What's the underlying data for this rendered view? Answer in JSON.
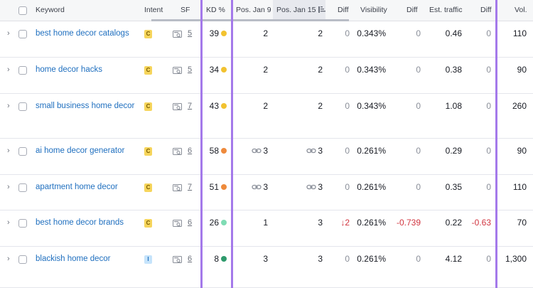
{
  "header": {
    "keyword": "Keyword",
    "intent": "Intent",
    "sf": "SF",
    "kd": "KD %",
    "pos_jan9": "Pos. Jan 9",
    "pos_jan15": "Pos. Jan 15",
    "diff1": "Diff",
    "visibility": "Visibility",
    "diff2": "Diff",
    "est_traffic": "Est. traffic",
    "diff3": "Diff",
    "vol": "Vol."
  },
  "rows": [
    {
      "keyword": "best home decor catalogs",
      "intent": "C",
      "sf": "5",
      "kd": "39",
      "kd_color": "#f2c230",
      "pos_jan9": "2",
      "pos_jan9_link": false,
      "pos_jan15": "2",
      "pos_jan15_link": false,
      "diff": "0",
      "diff_neg": false,
      "visibility": "0.343%",
      "vis_diff": "0",
      "vis_diff_neg": false,
      "traffic": "0.46",
      "traffic_diff": "0",
      "traffic_diff_neg": false,
      "vol": "110"
    },
    {
      "keyword": "home decor hacks",
      "intent": "C",
      "sf": "5",
      "kd": "34",
      "kd_color": "#f2c230",
      "pos_jan9": "2",
      "pos_jan9_link": false,
      "pos_jan15": "2",
      "pos_jan15_link": false,
      "diff": "0",
      "diff_neg": false,
      "visibility": "0.343%",
      "vis_diff": "0",
      "vis_diff_neg": false,
      "traffic": "0.38",
      "traffic_diff": "0",
      "traffic_diff_neg": false,
      "vol": "90"
    },
    {
      "keyword": "small business home decor",
      "intent": "C",
      "sf": "7",
      "kd": "43",
      "kd_color": "#f2c230",
      "pos_jan9": "2",
      "pos_jan9_link": false,
      "pos_jan15": "2",
      "pos_jan15_link": false,
      "diff": "0",
      "diff_neg": false,
      "visibility": "0.343%",
      "vis_diff": "0",
      "vis_diff_neg": false,
      "traffic": "1.08",
      "traffic_diff": "0",
      "traffic_diff_neg": false,
      "vol": "260"
    },
    {
      "keyword": "ai home decor generator",
      "intent": "C",
      "sf": "6",
      "kd": "58",
      "kd_color": "#ee8a3c",
      "pos_jan9": "3",
      "pos_jan9_link": true,
      "pos_jan15": "3",
      "pos_jan15_link": true,
      "diff": "0",
      "diff_neg": false,
      "visibility": "0.261%",
      "vis_diff": "0",
      "vis_diff_neg": false,
      "traffic": "0.29",
      "traffic_diff": "0",
      "traffic_diff_neg": false,
      "vol": "90"
    },
    {
      "keyword": "apartment home decor",
      "intent": "C",
      "sf": "7",
      "kd": "51",
      "kd_color": "#ee8a3c",
      "pos_jan9": "3",
      "pos_jan9_link": true,
      "pos_jan15": "3",
      "pos_jan15_link": true,
      "diff": "0",
      "diff_neg": false,
      "visibility": "0.261%",
      "vis_diff": "0",
      "vis_diff_neg": false,
      "traffic": "0.35",
      "traffic_diff": "0",
      "traffic_diff_neg": false,
      "vol": "110"
    },
    {
      "keyword": "best home decor brands",
      "intent": "C",
      "sf": "6",
      "kd": "26",
      "kd_color": "#7fdcb4",
      "pos_jan9": "1",
      "pos_jan9_link": false,
      "pos_jan15": "3",
      "pos_jan15_link": false,
      "diff": "2",
      "diff_neg": true,
      "visibility": "0.261%",
      "vis_diff": "-0.739",
      "vis_diff_neg": true,
      "traffic": "0.22",
      "traffic_diff": "-0.63",
      "traffic_diff_neg": true,
      "vol": "70"
    },
    {
      "keyword": "blackish home decor",
      "intent": "I",
      "sf": "6",
      "kd": "8",
      "kd_color": "#2e9a6c",
      "pos_jan9": "3",
      "pos_jan9_link": false,
      "pos_jan15": "3",
      "pos_jan15_link": false,
      "diff": "0",
      "diff_neg": false,
      "visibility": "0.261%",
      "vis_diff": "0",
      "vis_diff_neg": false,
      "traffic": "4.12",
      "traffic_diff": "0",
      "traffic_diff_neg": false,
      "vol": "1,300"
    }
  ],
  "icons": {
    "expand": "chevron-right-icon",
    "sf": "serp-features-icon",
    "link": "link-icon",
    "sort": "sort-icon",
    "down_arrow": "arrow-down-icon"
  },
  "colors": {
    "highlight": "#a479ea",
    "keyword_link": "#1f6fbf",
    "negative": "#d1343f",
    "intent_commercial": "#f6d55c",
    "intent_informational": "#c6e4fb"
  }
}
